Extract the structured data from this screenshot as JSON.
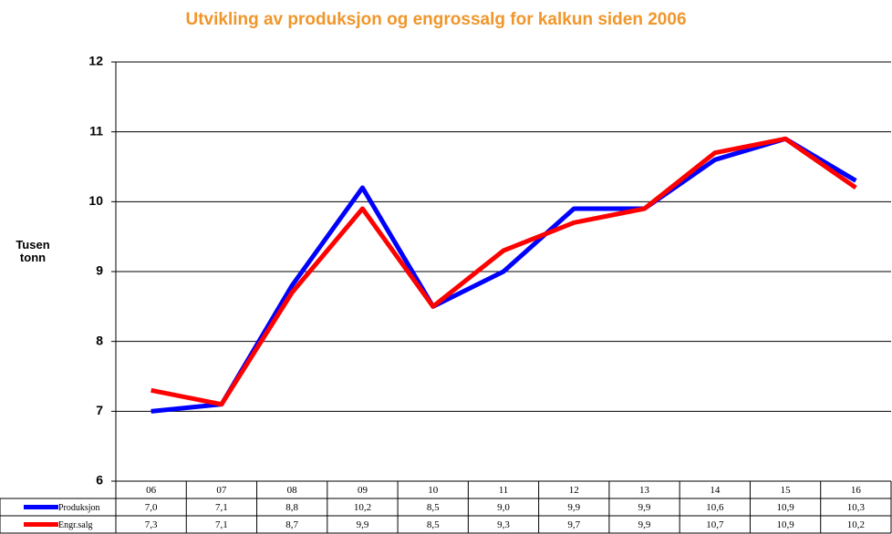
{
  "chart_data": {
    "type": "line",
    "title": "Utvikling av produksjon og engrossalg for kalkun siden 2006",
    "y_label": "Tusen tonn",
    "categories": [
      "06",
      "07",
      "08",
      "09",
      "10",
      "11",
      "12",
      "13",
      "14",
      "15",
      "16"
    ],
    "series": [
      {
        "name": "Produksjon",
        "color": "#0000ff",
        "values": [
          7.0,
          7.1,
          8.8,
          10.2,
          8.5,
          9.0,
          9.9,
          9.9,
          10.6,
          10.9,
          10.3
        ],
        "value_labels": [
          "7,0",
          "7,1",
          "8,8",
          "10,2",
          "8,5",
          "9,0",
          "9,9",
          "9,9",
          "10,6",
          "10,9",
          "10,3"
        ]
      },
      {
        "name": "Engr.salg",
        "color": "#ff0000",
        "values": [
          7.3,
          7.1,
          8.7,
          9.9,
          8.5,
          9.3,
          9.7,
          9.9,
          10.7,
          10.9,
          10.2
        ],
        "value_labels": [
          "7,3",
          "7,1",
          "8,7",
          "9,9",
          "8,5",
          "9,3",
          "9,7",
          "9,9",
          "10,7",
          "10,9",
          "10,2"
        ]
      }
    ],
    "ylim": [
      6,
      12
    ],
    "yticks": [
      6,
      7,
      8,
      9,
      10,
      11,
      12
    ],
    "grid": true
  }
}
